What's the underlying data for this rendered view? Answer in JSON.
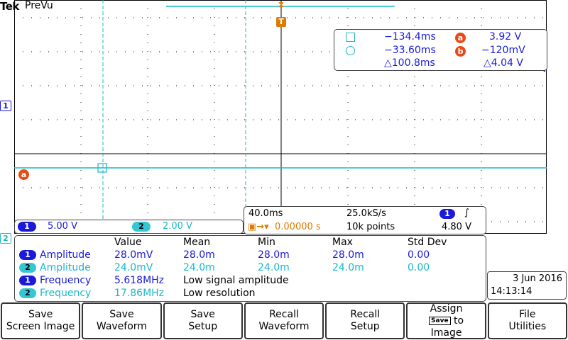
{
  "header": {
    "brand": "Tek",
    "mode": "PreVu"
  },
  "trigger_marker": "T",
  "channel_markers": {
    "ch1": "1",
    "ch2": "2"
  },
  "cursor_marker": "a",
  "cursors": {
    "row1": {
      "time": "−134.4ms",
      "badge": "a",
      "volt": "3.92 V"
    },
    "row2": {
      "time": "−33.60ms",
      "badge": "b",
      "volt": "−120mV"
    },
    "row3": {
      "delta_time": "△100.8ms",
      "delta_volt": "△4.04 V"
    }
  },
  "vertical": {
    "ch1_num": "1",
    "ch1_scale": "5.00 V",
    "ch2_num": "2",
    "ch2_scale": "2.00 V"
  },
  "horizontal": {
    "timebase": "40.0ms",
    "sample_rate": "25.0kS/s",
    "trig_source": "1",
    "trig_slope": "∫",
    "trig_position": "0.00000 s",
    "record_length": "10k points",
    "trig_level": "4.80 V"
  },
  "measurements": {
    "headers": {
      "value": "Value",
      "mean": "Mean",
      "min": "Min",
      "max": "Max",
      "std": "Std Dev"
    },
    "rows": [
      {
        "ch": "1",
        "name": "Amplitude",
        "value": "28.0mV",
        "mean": "28.0m",
        "min": "28.0m",
        "max": "28.0m",
        "std": "0.00"
      },
      {
        "ch": "2",
        "name": "Amplitude",
        "value": "24.0mV",
        "mean": "24.0m",
        "min": "24.0m",
        "max": "24.0m",
        "std": "0.00"
      },
      {
        "ch": "1",
        "name": "Frequency",
        "value": "5.618MHz",
        "note": "Low signal amplitude"
      },
      {
        "ch": "2",
        "name": "Frequency",
        "value": "17.86MHz",
        "note": "Low resolution"
      }
    ]
  },
  "datetime": {
    "date": "3 Jun 2016",
    "time": "14:13:14"
  },
  "softkeys": [
    "Save\nScreen Image",
    "Save\nWaveform",
    "Save\nSetup",
    "Recall\nWaveform",
    "Recall\nSetup",
    "Assign",
    "File\nUtilities"
  ],
  "assign_key": {
    "badge": "Save",
    "line2": "to",
    "line3": "Image"
  },
  "colors": {
    "ch1": "#1a1ad8",
    "ch2": "#19b8c8",
    "cursor": "#e64a19",
    "trigger": "#e07a00"
  }
}
